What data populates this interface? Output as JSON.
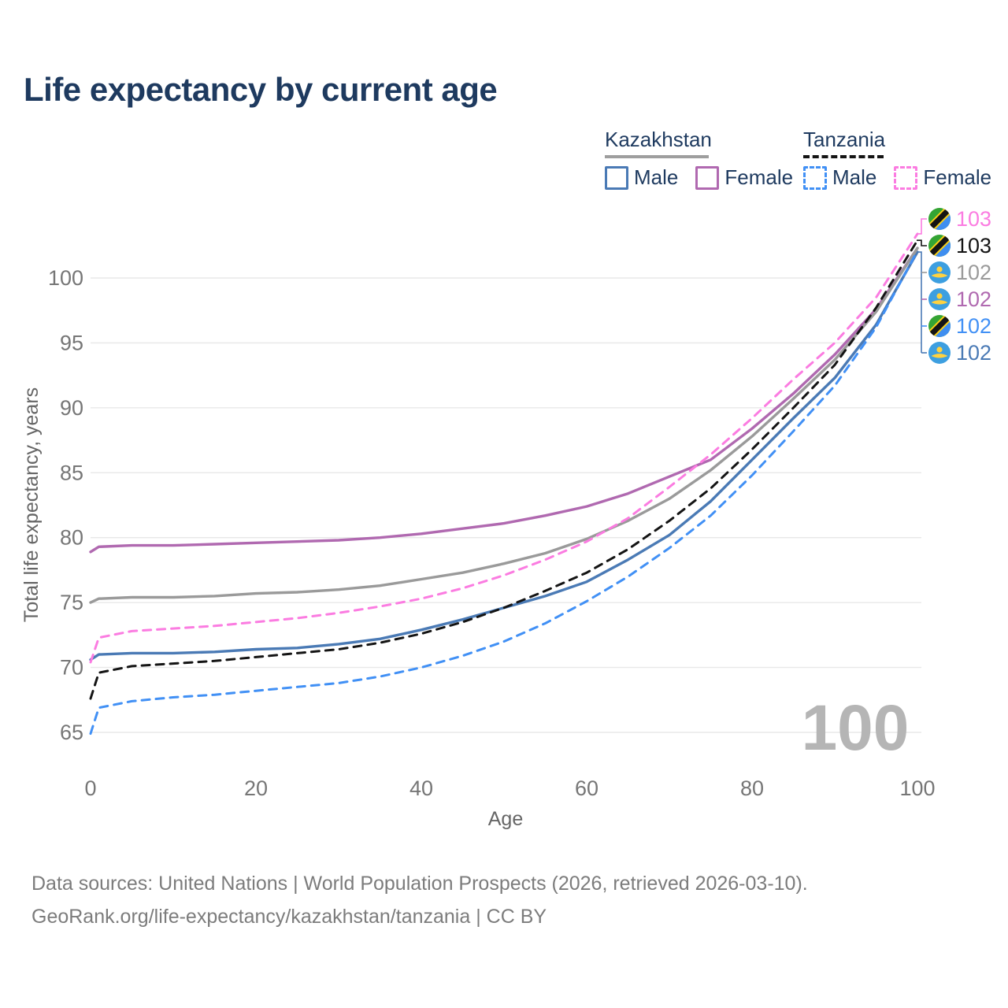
{
  "title": "Life expectancy by current age",
  "legend": {
    "groups": [
      {
        "label": "Kazakhstan",
        "line_style": "solid",
        "underline_color": "#9e9e9e",
        "items": [
          {
            "label": "Male",
            "color": "#4a7ab5",
            "dashed": false
          },
          {
            "label": "Female",
            "color": "#b069b0",
            "dashed": false
          }
        ]
      },
      {
        "label": "Tanzania",
        "line_style": "dashed",
        "underline_color": "#141414",
        "items": [
          {
            "label": "Male",
            "color": "#4190f5",
            "dashed": true
          },
          {
            "label": "Female",
            "color": "#fb7ce1",
            "dashed": true
          }
        ]
      }
    ]
  },
  "chart_data": {
    "type": "line",
    "title": "Life expectancy by current age",
    "xlabel": "Age",
    "ylabel": "Total life expectancy, years",
    "xlim": [
      0,
      100
    ],
    "ylim": [
      64.5,
      103.5
    ],
    "x_ticks": [
      0,
      20,
      40,
      60,
      80,
      100
    ],
    "y_ticks": [
      65,
      70,
      75,
      80,
      85,
      90,
      95,
      100
    ],
    "grid": "horizontal-only",
    "gridline_color": "#e8e8e8",
    "watermark": "100",
    "x": [
      0,
      1,
      5,
      10,
      15,
      20,
      25,
      30,
      35,
      40,
      45,
      50,
      55,
      60,
      65,
      70,
      75,
      80,
      85,
      90,
      95,
      100
    ],
    "series": [
      {
        "name": "Kazakhstan Male",
        "country": "Kazakhstan",
        "sex": "Male",
        "color": "#4a7ab5",
        "dashed": false,
        "end_value": 102,
        "values": [
          70.6,
          71.0,
          71.1,
          71.1,
          71.2,
          71.4,
          71.5,
          71.8,
          72.2,
          72.9,
          73.7,
          74.6,
          75.5,
          76.6,
          78.3,
          80.2,
          82.8,
          86.0,
          89.2,
          92.3,
          96.4,
          102.0
        ]
      },
      {
        "name": "Kazakhstan Female",
        "country": "Kazakhstan",
        "sex": "Female",
        "color": "#b069b0",
        "dashed": false,
        "end_value": 102,
        "values": [
          78.9,
          79.3,
          79.4,
          79.4,
          79.5,
          79.6,
          79.7,
          79.8,
          80.0,
          80.3,
          80.7,
          81.1,
          81.7,
          82.4,
          83.4,
          84.7,
          86.0,
          88.4,
          91.1,
          94.1,
          97.6,
          102.3
        ]
      },
      {
        "name": "Kazakhstan Both sexes",
        "country": "Kazakhstan",
        "sex": "Both",
        "color": "#9a9a9a",
        "dashed": false,
        "end_value": 102,
        "values": [
          75.0,
          75.3,
          75.4,
          75.4,
          75.5,
          75.7,
          75.8,
          76.0,
          76.3,
          76.8,
          77.3,
          78.0,
          78.8,
          79.9,
          81.3,
          83.0,
          85.2,
          87.8,
          90.7,
          93.7,
          97.4,
          102.3
        ]
      },
      {
        "name": "Tanzania Male",
        "country": "Tanzania",
        "sex": "Male",
        "color": "#4190f5",
        "dashed": true,
        "end_value": 102,
        "values": [
          64.9,
          66.9,
          67.4,
          67.7,
          67.9,
          68.2,
          68.5,
          68.8,
          69.3,
          70.0,
          70.9,
          72.0,
          73.4,
          75.1,
          77.0,
          79.2,
          81.7,
          84.8,
          88.2,
          91.7,
          96.2,
          102.1
        ]
      },
      {
        "name": "Tanzania Female",
        "country": "Tanzania",
        "sex": "Female",
        "color": "#fb7ce1",
        "dashed": true,
        "end_value": 103,
        "values": [
          70.4,
          72.3,
          72.8,
          73.0,
          73.2,
          73.5,
          73.8,
          74.2,
          74.7,
          75.3,
          76.1,
          77.1,
          78.3,
          79.7,
          81.5,
          83.9,
          86.4,
          89.2,
          92.2,
          95.0,
          98.5,
          103.4
        ]
      },
      {
        "name": "Tanzania Both sexes",
        "country": "Tanzania",
        "sex": "Both",
        "color": "#141414",
        "dashed": true,
        "end_value": 103,
        "values": [
          67.6,
          69.6,
          70.1,
          70.3,
          70.5,
          70.8,
          71.1,
          71.4,
          71.9,
          72.6,
          73.5,
          74.6,
          75.9,
          77.3,
          79.1,
          81.3,
          83.8,
          86.8,
          90.0,
          93.3,
          97.7,
          102.9
        ]
      }
    ]
  },
  "end_labels": [
    {
      "value": "103",
      "color": "#fb7ce1",
      "flag": "tanzania",
      "series": "Tanzania Female"
    },
    {
      "value": "103",
      "color": "#141414",
      "flag": "tanzania",
      "series": "Tanzania Both sexes"
    },
    {
      "value": "102",
      "color": "#9a9a9a",
      "flag": "kazakhstan",
      "series": "Kazakhstan Both sexes"
    },
    {
      "value": "102",
      "color": "#b069b0",
      "flag": "kazakhstan",
      "series": "Kazakhstan Female"
    },
    {
      "value": "102",
      "color": "#4190f5",
      "flag": "tanzania",
      "series": "Tanzania Male"
    },
    {
      "value": "102",
      "color": "#4a7ab5",
      "flag": "kazakhstan",
      "series": "Kazakhstan Male"
    }
  ],
  "footer": {
    "line1": "Data sources: United Nations | World Population Prospects (2026, retrieved 2026-03-10).",
    "line2": "GeoRank.org/life-expectancy/kazakhstan/tanzania | CC BY"
  }
}
